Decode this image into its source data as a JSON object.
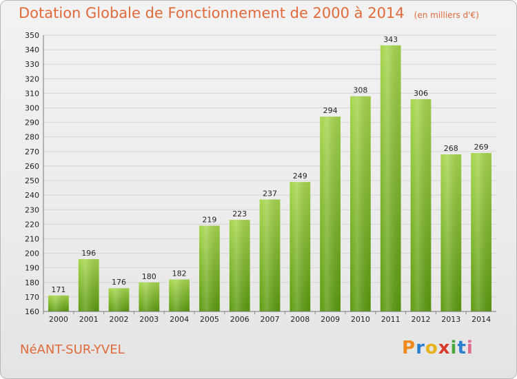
{
  "header": {
    "title": "Dotation Globale de Fonctionnement de 2000 à 2014",
    "subtitle": "(en milliers d'€)"
  },
  "footer": {
    "commune": "NéANT-SUR-YVEL",
    "logo": {
      "text": "Proxiti",
      "letters": [
        "P",
        "r",
        "o",
        "x",
        "i",
        "t",
        "i"
      ]
    }
  },
  "colors": {
    "title": "#e06a3a",
    "bar_top": "#a6d64e",
    "bar_bottom": "#5c9a10",
    "logo": [
      "#f08a1c",
      "#2a7fcf",
      "#e8b21a",
      "#d83a2a",
      "#4aa83a",
      "#2a7fcf",
      "#e06a8a"
    ]
  },
  "chart_data": {
    "type": "bar",
    "categories": [
      "2000",
      "2001",
      "2002",
      "2003",
      "2004",
      "2005",
      "2006",
      "2007",
      "2008",
      "2009",
      "2010",
      "2011",
      "2012",
      "2013",
      "2014"
    ],
    "values": [
      171,
      196,
      176,
      180,
      182,
      219,
      223,
      237,
      249,
      294,
      308,
      343,
      306,
      268,
      269
    ],
    "title": "Dotation Globale de Fonctionnement de 2000 à 2014",
    "subtitle": "(en milliers d'€)",
    "xlabel": "",
    "ylabel": "",
    "ylim": [
      160,
      350
    ],
    "yticks": [
      160,
      170,
      180,
      190,
      200,
      210,
      220,
      230,
      240,
      250,
      260,
      270,
      280,
      290,
      300,
      310,
      320,
      330,
      340,
      350
    ],
    "grid": true,
    "legend": "none"
  }
}
